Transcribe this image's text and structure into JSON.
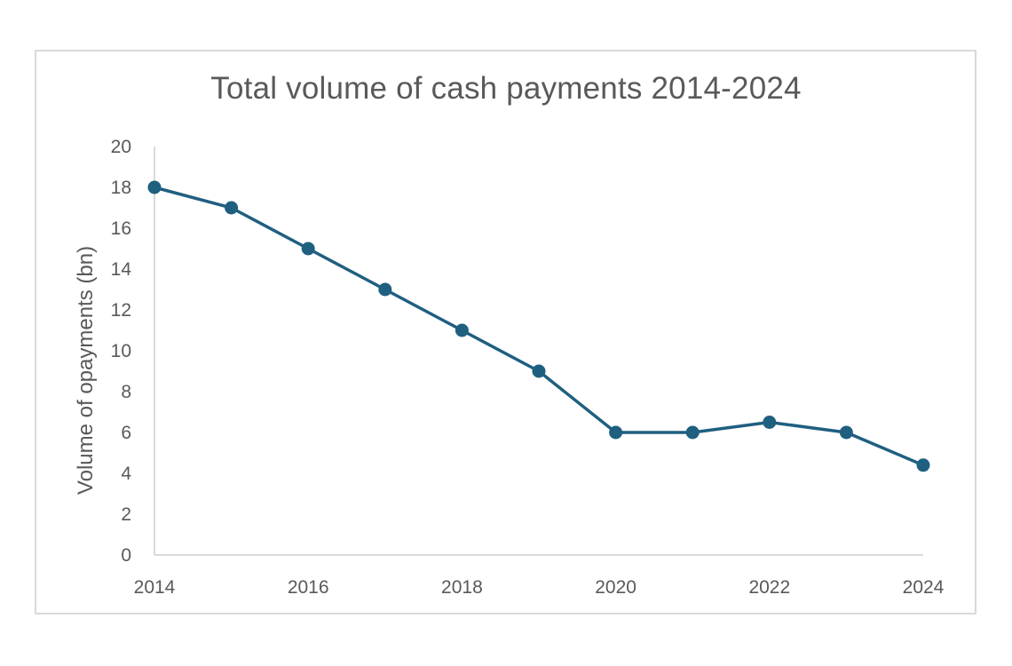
{
  "chart_data": {
    "type": "line",
    "title": "Total volume of cash payments 2014-2024",
    "xlabel": "",
    "ylabel": "Volume of opayments (bn)",
    "xlim": [
      2014,
      2024
    ],
    "ylim": [
      0,
      20
    ],
    "x_ticks": [
      2014,
      2016,
      2018,
      2020,
      2022,
      2024
    ],
    "y_ticks": [
      0,
      2,
      4,
      6,
      8,
      10,
      12,
      14,
      16,
      18,
      20
    ],
    "grid": false,
    "legend": "none",
    "series": [
      {
        "color": "#1f5f80",
        "x": [
          2014,
          2015,
          2016,
          2017,
          2018,
          2019,
          2020,
          2021,
          2022,
          2023,
          2024
        ],
        "y": [
          18,
          17,
          15,
          13,
          11,
          9,
          6,
          6,
          6.5,
          6,
          4.4
        ]
      }
    ]
  },
  "colors": {
    "series": "#1f5f80",
    "axis": "#d9d9d9",
    "text": "#595959"
  }
}
